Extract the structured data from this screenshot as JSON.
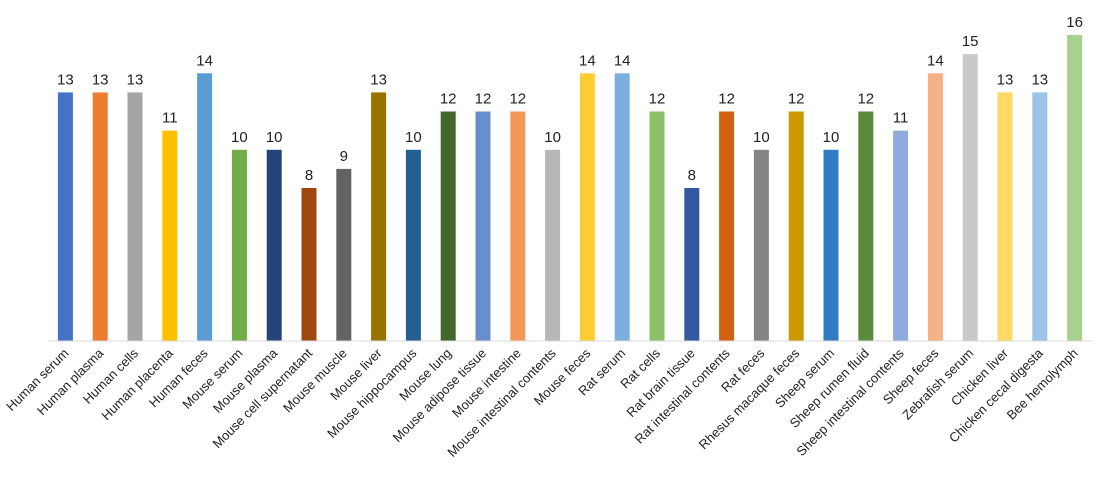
{
  "chart_data": {
    "type": "bar",
    "title": "",
    "xlabel": "",
    "ylabel": "",
    "ylim": [
      0,
      16
    ],
    "grid": false,
    "legend": "none",
    "data_labels": true,
    "categories": [
      "Human serum",
      "Human plasma",
      "Human cells",
      "Human placenta",
      "Human feces",
      "Mouse serum",
      "Mouse plasma",
      "Mouse cell supernatant",
      "Mouse muscle",
      "Mouse liver",
      "Mouse hippocampus",
      "Mouse lung",
      "Mouse adipose tissue",
      "Mouse intestine",
      "Mouse intestinal contents",
      "Mouse feces",
      "Rat serum",
      "Rat cells",
      "Rat brain tissue",
      "Rat intestinal contents",
      "Rat feces",
      "Rhesus macaque feces",
      "Sheep serum",
      "Sheep rumen fluid",
      "Sheep intestinal contents",
      "Sheep feces",
      "Zebrafish serum",
      "Chicken liver",
      "Chicken cecal digesta",
      "Bee hemolymph"
    ],
    "values": [
      13,
      13,
      13,
      11,
      14,
      10,
      10,
      8,
      9,
      13,
      10,
      12,
      12,
      12,
      10,
      14,
      14,
      12,
      8,
      12,
      10,
      12,
      10,
      12,
      11,
      14,
      15,
      13,
      13,
      16
    ],
    "colors": [
      "#4472c4",
      "#ed7d31",
      "#a5a5a5",
      "#ffc000",
      "#5b9bd5",
      "#70ad47",
      "#264478",
      "#9e480e",
      "#636363",
      "#997300",
      "#255e91",
      "#43682b",
      "#698ed0",
      "#f1975a",
      "#b7b7b7",
      "#ffcd33",
      "#7cafdd",
      "#8cc168",
      "#335aa1",
      "#d26012",
      "#848484",
      "#cc9a00",
      "#2f7cc0",
      "#5a8a3a",
      "#8faadc",
      "#f4b183",
      "#c9c9c9",
      "#ffd966",
      "#9dc3e6",
      "#a9d18e"
    ]
  }
}
